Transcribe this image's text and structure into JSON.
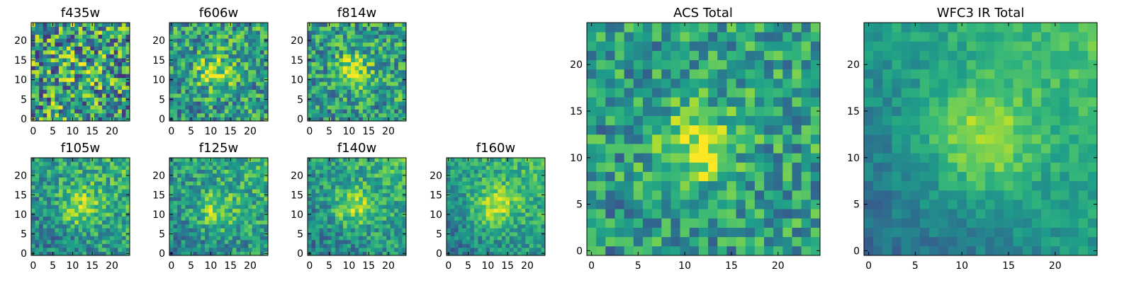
{
  "chart_data": [
    {
      "type": "heatmap",
      "title": "f435w",
      "xlim": [
        -0.5,
        24.5
      ],
      "ylim": [
        -0.5,
        24.5
      ],
      "xticks": [
        0,
        5,
        10,
        15,
        20
      ],
      "yticks": [
        0,
        5,
        10,
        15,
        20
      ],
      "colormap": "viridis",
      "grid": false,
      "source_peak": [
        12,
        12
      ],
      "source_sigma": 4,
      "source_strength": 0.05,
      "noise": 0.42,
      "background_gradient": 0.0
    },
    {
      "type": "heatmap",
      "title": "f606w",
      "xlim": [
        -0.5,
        24.5
      ],
      "ylim": [
        -0.5,
        24.5
      ],
      "xticks": [
        0,
        5,
        10,
        15,
        20
      ],
      "yticks": [
        0,
        5,
        10,
        15,
        20
      ],
      "colormap": "viridis",
      "grid": false,
      "source_peak": [
        11,
        12
      ],
      "source_sigma": 3,
      "source_strength": 0.35,
      "noise": 0.3,
      "background_gradient": 0.05
    },
    {
      "type": "heatmap",
      "title": "f814w",
      "xlim": [
        -0.5,
        24.5
      ],
      "ylim": [
        -0.5,
        24.5
      ],
      "xticks": [
        0,
        5,
        10,
        15,
        20
      ],
      "yticks": [
        0,
        5,
        10,
        15,
        20
      ],
      "colormap": "viridis",
      "grid": false,
      "source_peak": [
        11,
        12
      ],
      "source_sigma": 3,
      "source_strength": 0.4,
      "noise": 0.28,
      "background_gradient": 0.05
    },
    {
      "type": "heatmap",
      "title": "f105w",
      "xlim": [
        -0.5,
        24.5
      ],
      "ylim": [
        -0.5,
        24.5
      ],
      "xticks": [
        0,
        5,
        10,
        15,
        20
      ],
      "yticks": [
        0,
        5,
        10,
        15,
        20
      ],
      "colormap": "viridis",
      "grid": false,
      "source_peak": [
        12,
        12
      ],
      "source_sigma": 3.5,
      "source_strength": 0.35,
      "noise": 0.22,
      "background_gradient": 0.25
    },
    {
      "type": "heatmap",
      "title": "f125w",
      "xlim": [
        -0.5,
        24.5
      ],
      "ylim": [
        -0.5,
        24.5
      ],
      "xticks": [
        0,
        5,
        10,
        15,
        20
      ],
      "yticks": [
        0,
        5,
        10,
        15,
        20
      ],
      "colormap": "viridis",
      "grid": false,
      "source_peak": [
        11,
        11
      ],
      "source_sigma": 3.5,
      "source_strength": 0.3,
      "noise": 0.22,
      "background_gradient": 0.25
    },
    {
      "type": "heatmap",
      "title": "f140w",
      "xlim": [
        -0.5,
        24.5
      ],
      "ylim": [
        -0.5,
        24.5
      ],
      "xticks": [
        0,
        5,
        10,
        15,
        20
      ],
      "yticks": [
        0,
        5,
        10,
        15,
        20
      ],
      "colormap": "viridis",
      "grid": false,
      "source_peak": [
        11,
        12
      ],
      "source_sigma": 3.5,
      "source_strength": 0.33,
      "noise": 0.2,
      "background_gradient": 0.28
    },
    {
      "type": "heatmap",
      "title": "f160w",
      "xlim": [
        -0.5,
        24.5
      ],
      "ylim": [
        -0.5,
        24.5
      ],
      "xticks": [
        0,
        5,
        10,
        15,
        20
      ],
      "yticks": [
        0,
        5,
        10,
        15,
        20
      ],
      "colormap": "viridis",
      "grid": false,
      "source_peak": [
        12,
        12
      ],
      "source_sigma": 4,
      "source_strength": 0.35,
      "noise": 0.18,
      "background_gradient": 0.3
    },
    {
      "type": "heatmap",
      "title": "ACS Total",
      "xlim": [
        -0.5,
        24.5
      ],
      "ylim": [
        -0.5,
        24.5
      ],
      "xticks": [
        0,
        5,
        10,
        15,
        20
      ],
      "yticks": [
        0,
        5,
        10,
        15,
        20
      ],
      "colormap": "viridis",
      "grid": false,
      "source_peak": [
        11,
        11
      ],
      "source_sigma": 3,
      "source_strength": 0.35,
      "noise": 0.25,
      "background_gradient": 0.05
    },
    {
      "type": "heatmap",
      "title": "WFC3 IR Total",
      "xlim": [
        -0.5,
        24.5
      ],
      "ylim": [
        -0.5,
        24.5
      ],
      "xticks": [
        0,
        5,
        10,
        15,
        20
      ],
      "yticks": [
        0,
        5,
        10,
        15,
        20
      ],
      "colormap": "viridis",
      "grid": false,
      "source_peak": [
        12,
        12
      ],
      "source_sigma": 4,
      "source_strength": 0.32,
      "noise": 0.1,
      "background_gradient": 0.4
    }
  ]
}
